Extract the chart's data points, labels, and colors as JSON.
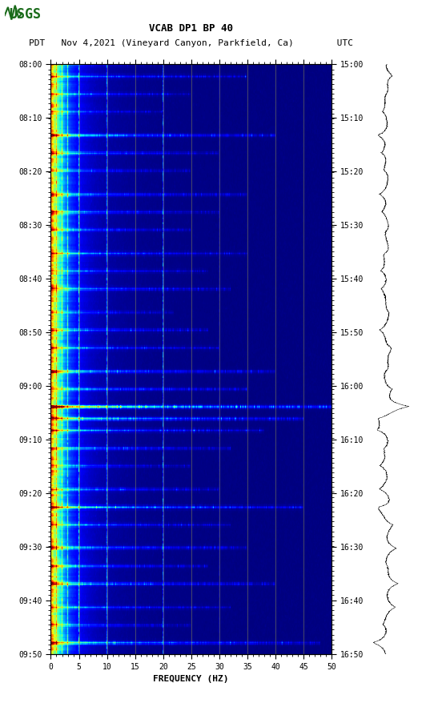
{
  "title_line1": "VCAB DP1 BP 40",
  "title_line2": "PDT   Nov 4,2021 (Vineyard Canyon, Parkfield, Ca)        UTC",
  "xlabel": "FREQUENCY (HZ)",
  "freq_min": 0,
  "freq_max": 50,
  "freq_ticks": [
    0,
    5,
    10,
    15,
    20,
    25,
    30,
    35,
    40,
    45,
    50
  ],
  "time_start_left": "08:00",
  "time_end_left": "09:50",
  "time_start_right": "15:00",
  "time_end_right": "16:50",
  "left_yticks": [
    "08:00",
    "08:10",
    "08:20",
    "08:30",
    "08:40",
    "08:50",
    "09:00",
    "09:10",
    "09:20",
    "09:30",
    "09:40",
    "09:50"
  ],
  "right_yticks": [
    "15:00",
    "15:10",
    "15:20",
    "15:30",
    "15:40",
    "15:50",
    "16:00",
    "16:10",
    "16:20",
    "16:30",
    "16:40",
    "16:50"
  ],
  "bg_color": "white",
  "spectrogram_cmap": "jet",
  "vertical_lines_freq": [
    5,
    10,
    15,
    20,
    25,
    30,
    35,
    40,
    45
  ],
  "vertical_line_color": "#888855",
  "logo_color": "#1a6b1a",
  "fig_width": 5.52,
  "fig_height": 8.93,
  "font_family": "monospace",
  "font_size_title": 9,
  "font_size_labels": 8,
  "font_size_ticks": 7
}
